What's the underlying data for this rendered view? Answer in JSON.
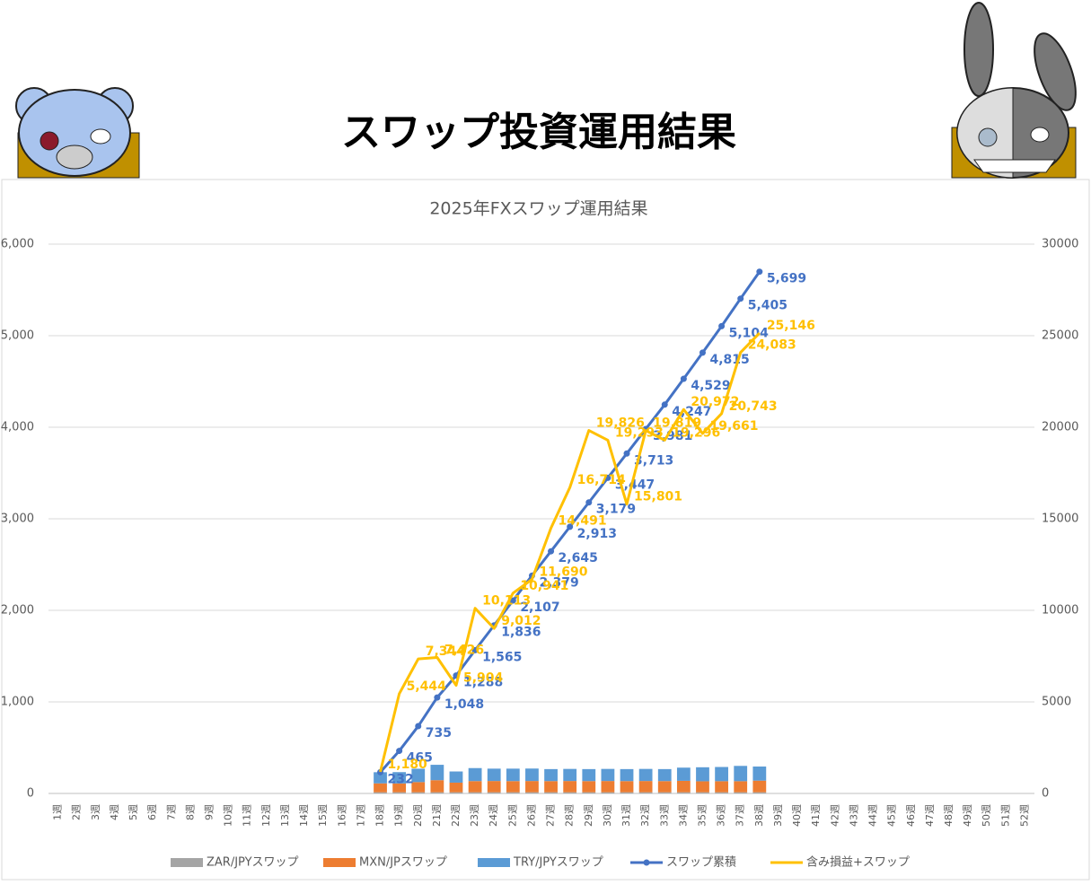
{
  "header": {
    "title": "スワップ投資運用結果"
  },
  "chart_data": {
    "type": "combo",
    "title": "2025年FXスワップ運用結果",
    "categories": [
      "1週",
      "2週",
      "3週",
      "4週",
      "5週",
      "6週",
      "7週",
      "8週",
      "9週",
      "10週",
      "11週",
      "12週",
      "13週",
      "14週",
      "15週",
      "16週",
      "17週",
      "18週",
      "19週",
      "20週",
      "21週",
      "22週",
      "23週",
      "24週",
      "25週",
      "26週",
      "27週",
      "28週",
      "29週",
      "30週",
      "31週",
      "32週",
      "33週",
      "34週",
      "35週",
      "36週",
      "37週",
      "38週",
      "39週",
      "40週",
      "41週",
      "42週",
      "43週",
      "44週",
      "45週",
      "46週",
      "47週",
      "48週",
      "49週",
      "50週",
      "51週",
      "52週"
    ],
    "series": [
      {
        "name": "ZAR/JPYスワップ",
        "type": "bar",
        "color": "#a5a5a5",
        "values": [
          null,
          null,
          null,
          null,
          null,
          null,
          null,
          null,
          null,
          null,
          null,
          null,
          null,
          null,
          null,
          null,
          null,
          13,
          13,
          13,
          13,
          13,
          13,
          13,
          13,
          13,
          13,
          13,
          13,
          13,
          13,
          13,
          13,
          13,
          13,
          13,
          13,
          13,
          null,
          null,
          null,
          null,
          null,
          null,
          null,
          null,
          null,
          null,
          null,
          null,
          null,
          null
        ]
      },
      {
        "name": "MXN/JPスワップ",
        "type": "bar",
        "color": "#ed7d31",
        "values": [
          null,
          null,
          null,
          null,
          null,
          null,
          null,
          null,
          null,
          null,
          null,
          null,
          null,
          null,
          null,
          null,
          null,
          97,
          96,
          111,
          132,
          105,
          122,
          123,
          122,
          123,
          122,
          123,
          122,
          123,
          122,
          123,
          122,
          125,
          120,
          121,
          121,
          127,
          null,
          null,
          null,
          null,
          null,
          null,
          null,
          null,
          null,
          null,
          null,
          null,
          null,
          null
        ]
      },
      {
        "name": "TRY/JPYスワップ",
        "type": "bar",
        "color": "#5b9bd5",
        "values": [
          null,
          null,
          null,
          null,
          null,
          null,
          null,
          null,
          null,
          null,
          null,
          null,
          null,
          null,
          null,
          null,
          null,
          122,
          124,
          146,
          168,
          122,
          142,
          135,
          136,
          136,
          131,
          132,
          131,
          132,
          131,
          132,
          131,
          144,
          153,
          155,
          167,
          154,
          null,
          null,
          null,
          null,
          null,
          null,
          null,
          null,
          null,
          null,
          null,
          null,
          null,
          null
        ]
      },
      {
        "name": "スワップ累積",
        "type": "line",
        "markers": true,
        "color": "#4472c4",
        "values": [
          null,
          null,
          null,
          null,
          null,
          null,
          null,
          null,
          null,
          null,
          null,
          null,
          null,
          null,
          null,
          null,
          null,
          232,
          465,
          735,
          1048,
          1288,
          1565,
          1836,
          2107,
          2379,
          2645,
          2913,
          3179,
          3447,
          3713,
          3981,
          4247,
          4529,
          4815,
          5104,
          5405,
          5699,
          null,
          null,
          null,
          null,
          null,
          null,
          null,
          null,
          null,
          null,
          null,
          null,
          null,
          null
        ],
        "value_labels": [
          null,
          null,
          null,
          null,
          null,
          null,
          null,
          null,
          null,
          null,
          null,
          null,
          null,
          null,
          null,
          null,
          null,
          "232",
          "465",
          "735",
          "1,048",
          "1,288",
          "1,565",
          "1,836",
          "2,107",
          "2,379",
          "2,645",
          "2,913",
          "3,179",
          "3,447",
          "3,713",
          "3,981",
          "4,247",
          "4,529",
          "4,815",
          "5,104",
          "5,405",
          "5,699",
          null,
          null,
          null,
          null,
          null,
          null,
          null,
          null,
          null,
          null,
          null,
          null,
          null,
          null
        ]
      },
      {
        "name": "含み損益+スワップ",
        "type": "line",
        "axis": "y2",
        "color": "#ffc000",
        "values": [
          null,
          null,
          null,
          null,
          null,
          null,
          null,
          null,
          null,
          null,
          null,
          null,
          null,
          null,
          null,
          null,
          null,
          1180,
          5444,
          7344,
          7426,
          5904,
          10113,
          9012,
          10941,
          11690,
          14491,
          16714,
          19826,
          19293,
          15801,
          19819,
          19296,
          20972,
          19661,
          20743,
          24083,
          25146,
          null,
          null,
          null,
          null,
          null,
          null,
          null,
          null,
          null,
          null,
          null,
          null,
          null,
          null
        ],
        "value_labels": [
          null,
          null,
          null,
          null,
          null,
          null,
          null,
          null,
          null,
          null,
          null,
          null,
          null,
          null,
          null,
          null,
          null,
          "1,180",
          "5,444",
          "7,344",
          "7,426",
          "5,904",
          "10,113",
          "9,012",
          "10,941",
          "11,690",
          "14,491",
          "16,714",
          "19,826",
          "19,293",
          "15,801",
          "19,819",
          "19,296",
          "20,972",
          "19,661",
          "20,743",
          "24,083",
          "25,146",
          null,
          null,
          null,
          null,
          null,
          null,
          null,
          null,
          null,
          null,
          null,
          null,
          null,
          null
        ]
      }
    ],
    "ylim": [
      0,
      6000
    ],
    "yticks": [
      0,
      {
        "value": 1000,
        "label": "1,000"
      },
      {
        "value": 2000,
        "label": "2,000"
      },
      {
        "value": 3000,
        "label": "3,000"
      },
      {
        "value": 4000,
        "label": "4,000"
      },
      {
        "value": 5000,
        "label": "5,000"
      },
      {
        "value": 6000,
        "label": "6,000"
      }
    ],
    "y2lim": [
      0,
      30000
    ],
    "y2ticks": [
      0,
      5000,
      10000,
      15000,
      20000,
      25000,
      30000
    ],
    "grid": true,
    "legend": "bottom"
  }
}
